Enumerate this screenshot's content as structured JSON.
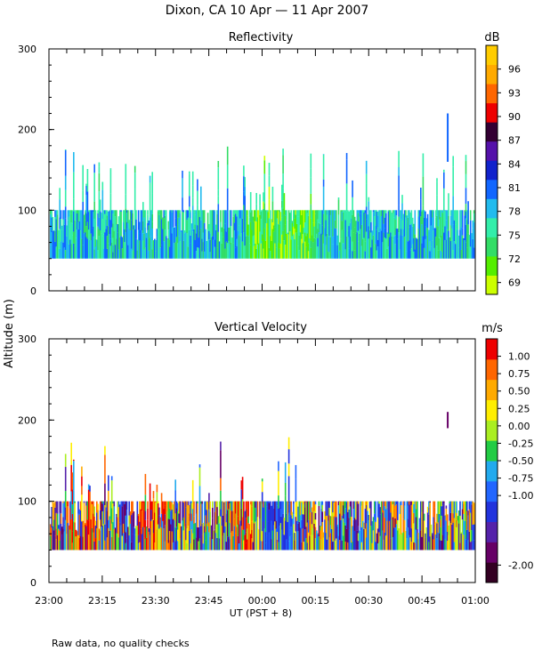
{
  "chart_data": {
    "type": "heatmap",
    "title": "Dixon, CA 10 Apr — 11 Apr 2007",
    "xlabel": "UT  (PST + 8)",
    "ylabel": "Altitude (m)",
    "footnote": "Raw data, no quality checks",
    "x_range_minutes": [
      0,
      120
    ],
    "x_ticks": [
      {
        "label": "23:00",
        "minutes": 0
      },
      {
        "label": "23:15",
        "minutes": 15
      },
      {
        "label": "23:30",
        "minutes": 30
      },
      {
        "label": "23:45",
        "minutes": 45
      },
      {
        "label": "00:00",
        "minutes": 60
      },
      {
        "label": "00:15",
        "minutes": 75
      },
      {
        "label": "00:30",
        "minutes": 90
      },
      {
        "label": "00:45",
        "minutes": 105
      },
      {
        "label": "01:00",
        "minutes": 120
      }
    ],
    "panels": [
      {
        "title": "Reflectivity",
        "unit": "dB",
        "ylim": [
          0,
          300
        ],
        "y_ticks": [
          0,
          100,
          200,
          300
        ],
        "colorbar": {
          "range": [
            67.5,
            99
          ],
          "labels": [
            "96",
            "93",
            "90",
            "87",
            "84",
            "81",
            "78",
            "75",
            "72",
            "69"
          ],
          "label_values": [
            96,
            93,
            90,
            87,
            84,
            81,
            78,
            75,
            72,
            69
          ],
          "colors": [
            "#ccff00",
            "#55ee00",
            "#33dd66",
            "#33eeaa",
            "#22bbee",
            "#1166ff",
            "#1122cc",
            "#5511aa",
            "#330033",
            "#ee0000",
            "#ff6600",
            "#ffaa00",
            "#ffcc00"
          ]
        },
        "data_summary": "Echo layer between ~40 m and ~100 m throughout, occasional plumes up to ~180 m; isolated echo near 00:52 at 160-220 m"
      },
      {
        "title": "Vertical Velocity",
        "unit": "m/s",
        "ylim": [
          0,
          300
        ],
        "y_ticks": [
          0,
          100,
          200,
          300
        ],
        "colorbar": {
          "range": [
            -2.25,
            1.25
          ],
          "labels": [
            "1.00",
            "0.75",
            "0.50",
            "0.25",
            "0.00",
            "-0.25",
            "-0.50",
            "-0.75",
            "-1.00",
            "-2.00"
          ],
          "label_values": [
            1.0,
            0.75,
            0.5,
            0.25,
            0.0,
            -0.25,
            -0.5,
            -0.75,
            -1.0,
            -2.0
          ],
          "colors": [
            "#330022",
            "#660066",
            "#5522aa",
            "#2233dd",
            "#2266ff",
            "#22aaee",
            "#22cc44",
            "#aaee22",
            "#ffee00",
            "#ffaa00",
            "#ff6600",
            "#ee0000"
          ]
        },
        "data_summary": "Mixed updrafts and downdrafts from ~40 m to ~100 m, strong updrafts (red) near 23:08, 23:26-23:33 and 23:55"
      }
    ]
  }
}
